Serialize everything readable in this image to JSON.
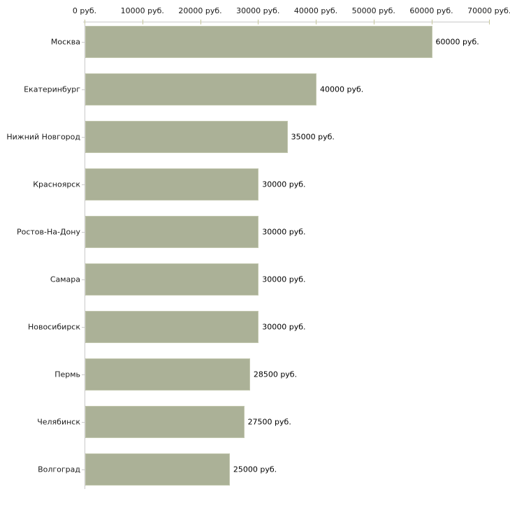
{
  "chart_data": {
    "type": "bar",
    "orientation": "horizontal",
    "title": "",
    "unit_suffix": " руб.",
    "categories": [
      "Москва",
      "Екатеринбург",
      "Нижний Новгород",
      "Красноярск",
      "Ростов-На-Дону",
      "Самара",
      "Новосибирск",
      "Пермь",
      "Челябинск",
      "Волгоград"
    ],
    "values": [
      60000,
      40000,
      35000,
      30000,
      30000,
      30000,
      30000,
      28500,
      27500,
      25000
    ],
    "value_labels": [
      "60000 руб.",
      "40000 руб.",
      "35000 руб.",
      "30000 руб.",
      "30000 руб.",
      "30000 руб.",
      "30000 руб.",
      "28500 руб.",
      "27500 руб.",
      "25000 руб."
    ],
    "x_axis": {
      "position": "top",
      "min": 0,
      "max": 70000,
      "tick_step": 10000,
      "tick_values": [
        0,
        10000,
        20000,
        30000,
        40000,
        50000,
        60000,
        70000
      ],
      "tick_labels": [
        "0 руб.",
        "10000 руб.",
        "20000 руб.",
        "30000 руб.",
        "40000 руб.",
        "50000 руб.",
        "60000 руб.",
        "70000 руб."
      ]
    },
    "colors": {
      "bar_fill": "#abb197",
      "bar_border": "#c2c7ae",
      "axis_line": "#c9c9c9",
      "axis_tick": "#c6c69c",
      "label_text": "#1a1a1a"
    },
    "grid": false,
    "legend": false
  }
}
